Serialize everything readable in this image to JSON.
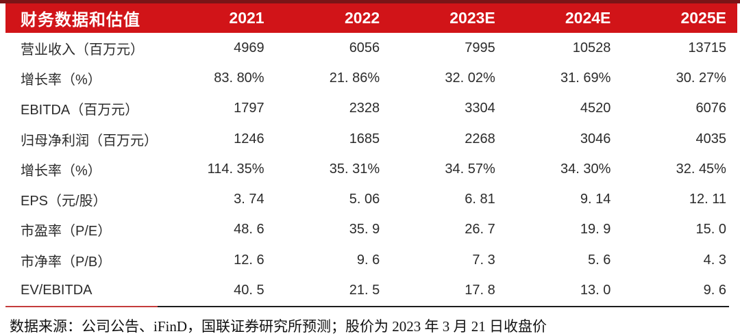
{
  "table": {
    "header": {
      "label": "财务数据和估值",
      "years": [
        "2021",
        "2022",
        "2023E",
        "2024E",
        "2025E"
      ]
    },
    "rows": [
      {
        "label": "营业收入（百万元）",
        "values": [
          "4969",
          "6056",
          "7995",
          "10528",
          "13715"
        ]
      },
      {
        "label": "增长率（%）",
        "values": [
          "83. 80%",
          "21. 86%",
          "32. 02%",
          "31. 69%",
          "30. 27%"
        ]
      },
      {
        "label": "EBITDA（百万元）",
        "values": [
          "1797",
          "2328",
          "3304",
          "4520",
          "6076"
        ]
      },
      {
        "label": "归母净利润（百万元）",
        "values": [
          "1246",
          "1685",
          "2268",
          "3046",
          "4035"
        ]
      },
      {
        "label": "增长率（%）",
        "values": [
          "114. 35%",
          "35. 31%",
          "34. 57%",
          "34. 30%",
          "32. 45%"
        ]
      },
      {
        "label": "EPS（元/股）",
        "values": [
          "3. 74",
          "5. 06",
          "6. 81",
          "9. 14",
          "12. 11"
        ]
      },
      {
        "label": "市盈率（P/E）",
        "values": [
          "48. 6",
          "35. 9",
          "26. 7",
          "19. 9",
          "15. 0"
        ]
      },
      {
        "label": "市净率（P/B）",
        "values": [
          "12. 6",
          "9. 6",
          "7. 3",
          "5. 6",
          "4. 3"
        ]
      },
      {
        "label": "EV/EBITDA",
        "values": [
          "40. 5",
          "21. 5",
          "17. 8",
          "13. 0",
          "9. 6"
        ]
      }
    ]
  },
  "footer": {
    "source_note": "数据来源：公司公告、iFinD，国联证券研究所预测；股价为 2023 年 3 月 21 日收盘价"
  },
  "colors": {
    "header_bg": "#d11418",
    "header_text": "#ffffff",
    "top_rule": "#7a1517",
    "bottom_rule_red": "#c43c3c",
    "bottom_rule_black": "#1c1c1c",
    "body_text": "#2b2b2b"
  }
}
